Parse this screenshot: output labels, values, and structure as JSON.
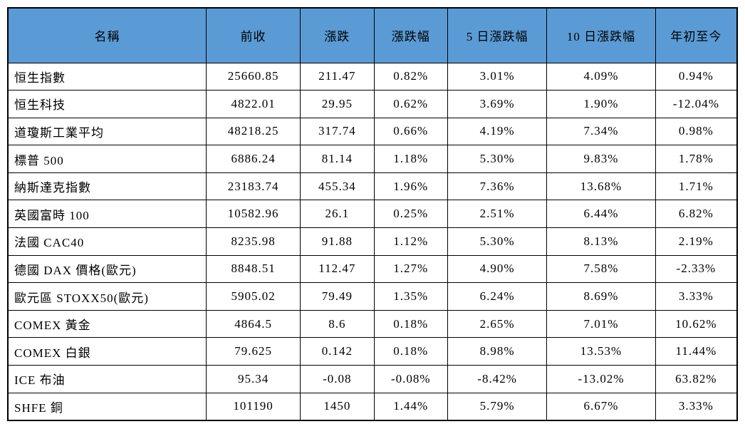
{
  "colors": {
    "header_bg": "#5B9BD5",
    "border": "#000000",
    "text": "#000000",
    "background": "#FFFFFF"
  },
  "table": {
    "columns": [
      "名稱",
      "前收",
      "漲跌",
      "漲跌幅",
      "5 日漲跌幅",
      "10 日漲跌幅",
      "年初至今"
    ],
    "rows": [
      {
        "name": "恒生指數",
        "prev_close": "25660.85",
        "change": "211.47",
        "change_pct": "0.82%",
        "pct_5d": "3.01%",
        "pct_10d": "4.09%",
        "ytd": "0.94%"
      },
      {
        "name": "恒生科技",
        "prev_close": "4822.01",
        "change": "29.95",
        "change_pct": "0.62%",
        "pct_5d": "3.69%",
        "pct_10d": "1.90%",
        "ytd": "-12.04%"
      },
      {
        "name": "道瓊斯工業平均",
        "prev_close": "48218.25",
        "change": "317.74",
        "change_pct": "0.66%",
        "pct_5d": "4.19%",
        "pct_10d": "7.34%",
        "ytd": "0.98%"
      },
      {
        "name": "標普 500",
        "prev_close": "6886.24",
        "change": "81.14",
        "change_pct": "1.18%",
        "pct_5d": "5.30%",
        "pct_10d": "9.83%",
        "ytd": "1.78%"
      },
      {
        "name": "納斯達克指數",
        "prev_close": "23183.74",
        "change": "455.34",
        "change_pct": "1.96%",
        "pct_5d": "7.36%",
        "pct_10d": "13.68%",
        "ytd": "1.71%"
      },
      {
        "name": "英國富時 100",
        "prev_close": "10582.96",
        "change": "26.1",
        "change_pct": "0.25%",
        "pct_5d": "2.51%",
        "pct_10d": "6.44%",
        "ytd": "6.82%"
      },
      {
        "name": "法國 CAC40",
        "prev_close": "8235.98",
        "change": "91.88",
        "change_pct": "1.12%",
        "pct_5d": "5.30%",
        "pct_10d": "8.13%",
        "ytd": "2.19%"
      },
      {
        "name": "德國 DAX 價格(歐元)",
        "prev_close": "8848.51",
        "change": "112.47",
        "change_pct": "1.27%",
        "pct_5d": "4.90%",
        "pct_10d": "7.58%",
        "ytd": "-2.33%"
      },
      {
        "name": "歐元區 STOXX50(歐元)",
        "prev_close": "5905.02",
        "change": "79.49",
        "change_pct": "1.35%",
        "pct_5d": "6.24%",
        "pct_10d": "8.69%",
        "ytd": "3.33%"
      },
      {
        "name": "COMEX 黃金",
        "prev_close": "4864.5",
        "change": "8.6",
        "change_pct": "0.18%",
        "pct_5d": "2.65%",
        "pct_10d": "7.01%",
        "ytd": "10.62%"
      },
      {
        "name": "COMEX 白銀",
        "prev_close": "79.625",
        "change": "0.142",
        "change_pct": "0.18%",
        "pct_5d": "8.98%",
        "pct_10d": "13.53%",
        "ytd": "11.44%"
      },
      {
        "name": "ICE 布油",
        "prev_close": "95.34",
        "change": "-0.08",
        "change_pct": "-0.08%",
        "pct_5d": "-8.42%",
        "pct_10d": "-13.02%",
        "ytd": "63.82%"
      },
      {
        "name": "SHFE 銅",
        "prev_close": "101190",
        "change": "1450",
        "change_pct": "1.44%",
        "pct_5d": "5.79%",
        "pct_10d": "6.67%",
        "ytd": "3.33%"
      }
    ]
  }
}
